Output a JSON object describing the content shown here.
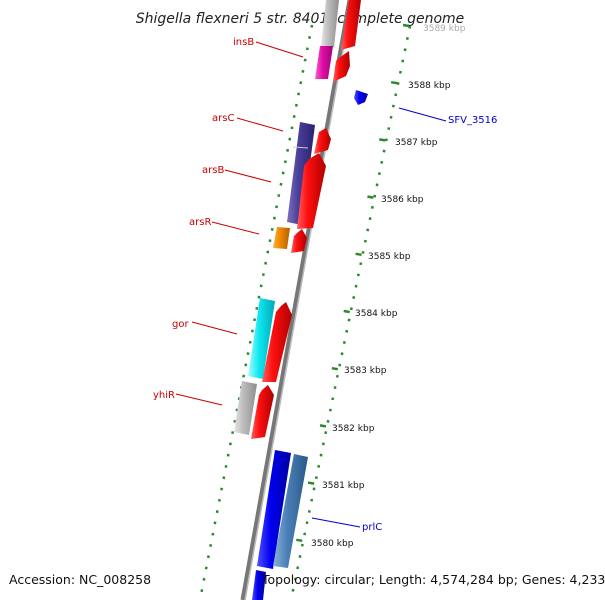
{
  "title": "Shigella flexneri 5 str. 8401, complete genome",
  "accession": "Accession: NC_008258",
  "summary": "Topology: circular; Length: 4,574,284 bp; Genes: 4,233",
  "colors": {
    "backbone": "#888888",
    "tick": "#2a8a2a",
    "dots": "#2a8a2a",
    "feature_label": "#cc0000",
    "protein_label": "#0000cc"
  },
  "ticks": [
    "3589 kbp",
    "3588 kbp",
    "3587 kbp",
    "3586 kbp",
    "3585 kbp",
    "3584 kbp",
    "3583 kbp",
    "3582 kbp",
    "3581 kbp",
    "3580 kbp"
  ],
  "gene_labels": [
    {
      "name": "insB",
      "color": "#cc0000"
    },
    {
      "name": "arsC",
      "color": "#cc0000"
    },
    {
      "name": "arsB",
      "color": "#cc0000"
    },
    {
      "name": "arsR",
      "color": "#cc0000"
    },
    {
      "name": "gor",
      "color": "#cc0000"
    },
    {
      "name": "yhiR",
      "color": "#cc0000"
    },
    {
      "name": "SFV_3516",
      "color": "#0000cc"
    },
    {
      "name": "prlC",
      "color": "#0000cc"
    }
  ]
}
